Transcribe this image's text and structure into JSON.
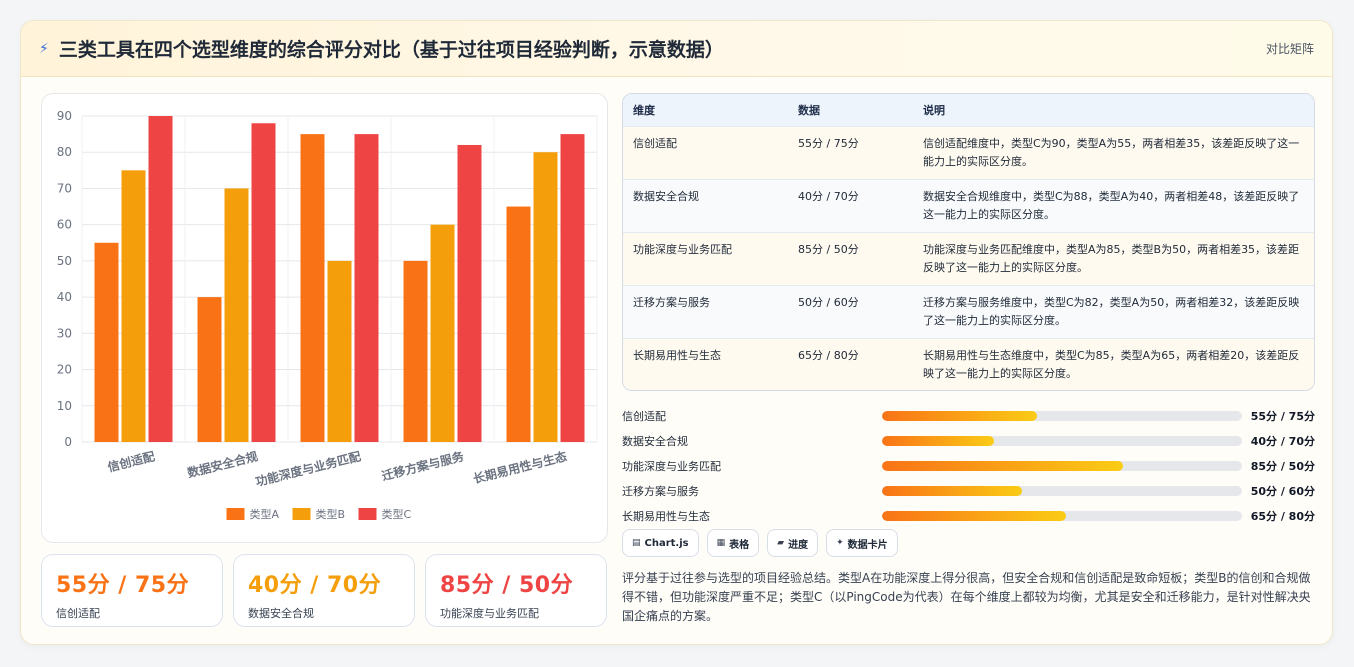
{
  "header": {
    "title": "三类工具在四个选型维度的综合评分对比（基于过往项目经验判断，示意数据）",
    "tag": "对比矩阵"
  },
  "chart_data": {
    "type": "bar",
    "categories": [
      "信创适配",
      "数据安全合规",
      "功能深度与业务匹配",
      "迁移方案与服务",
      "长期易用性与生态"
    ],
    "series": [
      {
        "name": "类型A",
        "values": [
          55,
          40,
          85,
          50,
          65
        ],
        "color": "#f97316"
      },
      {
        "name": "类型B",
        "values": [
          75,
          70,
          50,
          60,
          80
        ],
        "color": "#f59e0b"
      },
      {
        "name": "类型C",
        "values": [
          90,
          88,
          85,
          82,
          85
        ],
        "color": "#ef4444"
      }
    ],
    "yticks": [
      0,
      10,
      20,
      30,
      40,
      50,
      60,
      70,
      80,
      90
    ],
    "ylim": [
      0,
      90
    ],
    "legend": "bottom",
    "grid": true
  },
  "stats": [
    {
      "value": "55分 / 75分",
      "label": "信创适配",
      "color": "#f97316"
    },
    {
      "value": "40分 / 70分",
      "label": "数据安全合规",
      "color": "#f59e0b"
    },
    {
      "value": "85分 / 50分",
      "label": "功能深度与业务匹配",
      "color": "#ef4444"
    }
  ],
  "table": {
    "headers": [
      "维度",
      "数据",
      "说明"
    ],
    "rows": [
      {
        "dim": "信创适配",
        "data": "55分 / 75分",
        "desc": "信创适配维度中，类型C为90，类型A为55，两者相差35，该差距反映了这一能力上的实际区分度。"
      },
      {
        "dim": "数据安全合规",
        "data": "40分 / 70分",
        "desc": "数据安全合规维度中，类型C为88，类型A为40，两者相差48，该差距反映了这一能力上的实际区分度。"
      },
      {
        "dim": "功能深度与业务匹配",
        "data": "85分 / 50分",
        "desc": "功能深度与业务匹配维度中，类型A为85，类型B为50，两者相差35，该差距反映了这一能力上的实际区分度。"
      },
      {
        "dim": "迁移方案与服务",
        "data": "50分 / 60分",
        "desc": "迁移方案与服务维度中，类型C为82，类型A为50，两者相差32，该差距反映了这一能力上的实际区分度。"
      },
      {
        "dim": "长期易用性与生态",
        "data": "65分 / 80分",
        "desc": "长期易用性与生态维度中，类型C为85，类型A为65，两者相差20，该差距反映了这一能力上的实际区分度。"
      }
    ]
  },
  "progress": [
    {
      "name": "信创适配",
      "value": "55分 / 75分",
      "fraction": 0.43
    },
    {
      "name": "数据安全合规",
      "value": "40分 / 70分",
      "fraction": 0.31
    },
    {
      "name": "功能深度与业务匹配",
      "value": "85分 / 50分",
      "fraction": 0.67
    },
    {
      "name": "迁移方案与服务",
      "value": "50分 / 60分",
      "fraction": 0.39
    },
    {
      "name": "长期易用性与生态",
      "value": "65分 / 80分",
      "fraction": 0.51
    }
  ],
  "chips": [
    {
      "icon": "chart-icon",
      "label": "Chart.js"
    },
    {
      "icon": "table-icon",
      "label": "表格"
    },
    {
      "icon": "progress-icon",
      "label": "进度"
    },
    {
      "icon": "sparkle-icon",
      "label": "数据卡片"
    }
  ],
  "summary": "评分基于过往参与选型的项目经验总结。类型A在功能深度上得分很高，但安全合规和信创适配是致命短板；类型B的信创和合规做得不错，但功能深度严重不足；类型C（以PingCode为代表）在每个维度上都较为均衡，尤其是安全和迁移能力，是针对性解决央国企痛点的方案。"
}
